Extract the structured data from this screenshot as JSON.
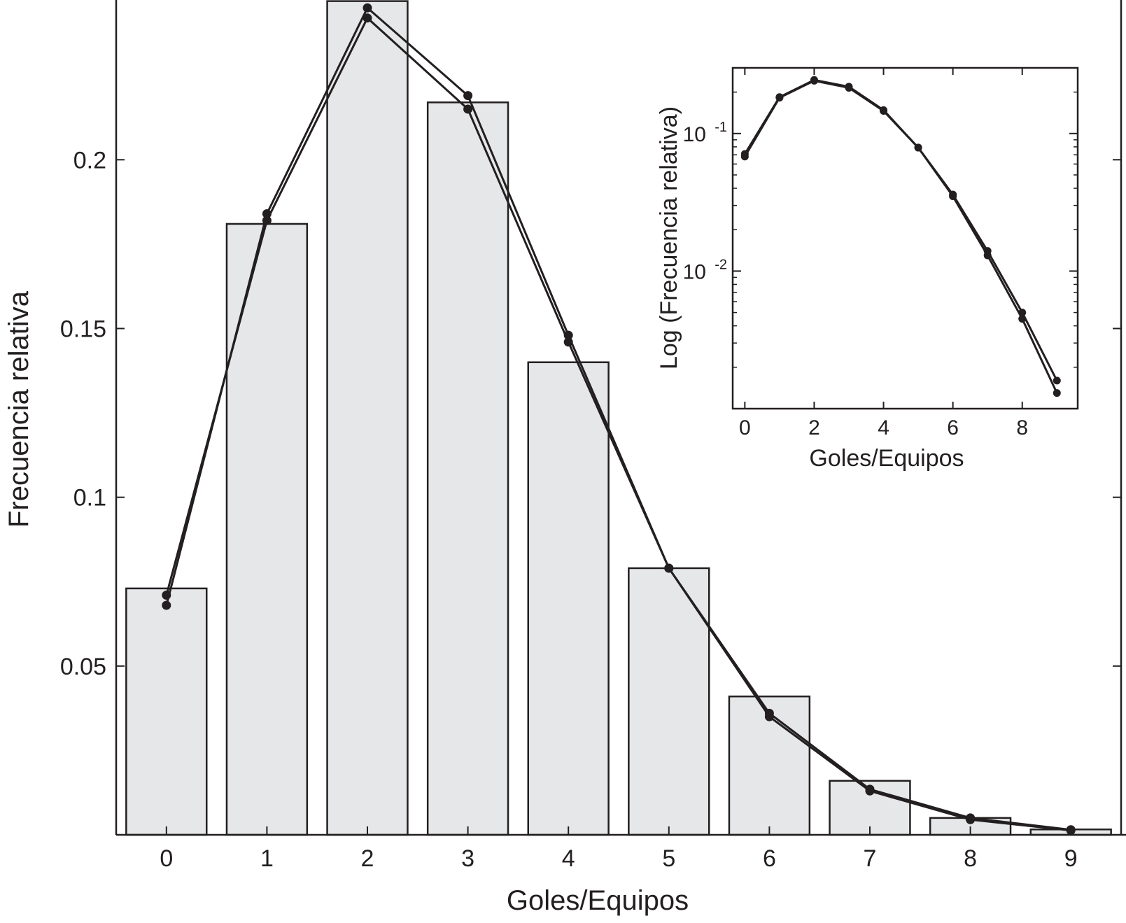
{
  "colors": {
    "bar_fill": "#e6e7e8",
    "ink": "#231f20",
    "background": "#ffffff"
  },
  "chart_data": [
    {
      "type": "bar",
      "xlabel": "Goles/Equipos",
      "ylabel": "Frecuencia relativa",
      "ylim": [
        0,
        0.2465
      ],
      "xlim": [
        -0.5,
        9.5
      ],
      "grid": false,
      "x": [
        0,
        1,
        2,
        3,
        4,
        5,
        6,
        7,
        8,
        9
      ],
      "x_tick_labels": [
        "0",
        "1",
        "2",
        "3",
        "4",
        "5",
        "6",
        "7",
        "8",
        "9"
      ],
      "y_ticks": [
        0.05,
        0.1,
        0.15,
        0.2
      ],
      "y_tick_labels": [
        "0.05",
        "0.1",
        "0.15",
        "0.2"
      ],
      "bars": [
        0.073,
        0.181,
        0.247,
        0.217,
        0.14,
        0.079,
        0.041,
        0.016,
        0.005,
        0.0016
      ],
      "series": [
        {
          "type": "line",
          "values": [
            0.068,
            0.184,
            0.245,
            0.219,
            0.148,
            0.079,
            0.036,
            0.0135,
            0.005,
            0.0015
          ]
        },
        {
          "type": "line",
          "values": [
            0.071,
            0.182,
            0.242,
            0.215,
            0.146,
            0.079,
            0.035,
            0.013,
            0.0045,
            0.0013
          ]
        }
      ]
    },
    {
      "type": "line",
      "inset": true,
      "xlabel": "Goles/Equipos",
      "ylabel": "Log (Frecuencia relativa)",
      "yscale": "log",
      "xlim": [
        -0.35,
        9.6
      ],
      "ylim": [
        0.001,
        0.3
      ],
      "x_ticks": [
        0,
        2,
        4,
        6,
        8
      ],
      "x_tick_labels": [
        "0",
        "2",
        "4",
        "6",
        "8"
      ],
      "y_ticks": [
        0.01,
        0.1
      ],
      "y_tick_labels": [
        {
          "base": "10",
          "exp": "-2"
        },
        {
          "base": "10",
          "exp": "-1"
        }
      ],
      "x": [
        0,
        1,
        2,
        3,
        4,
        5,
        6,
        7,
        8,
        9
      ],
      "series": [
        {
          "values": [
            0.071,
            0.184,
            0.245,
            0.219,
            0.148,
            0.079,
            0.036,
            0.014,
            0.005,
            0.0016
          ]
        },
        {
          "values": [
            0.068,
            0.182,
            0.242,
            0.215,
            0.146,
            0.079,
            0.035,
            0.013,
            0.0045,
            0.0013
          ]
        }
      ]
    }
  ]
}
